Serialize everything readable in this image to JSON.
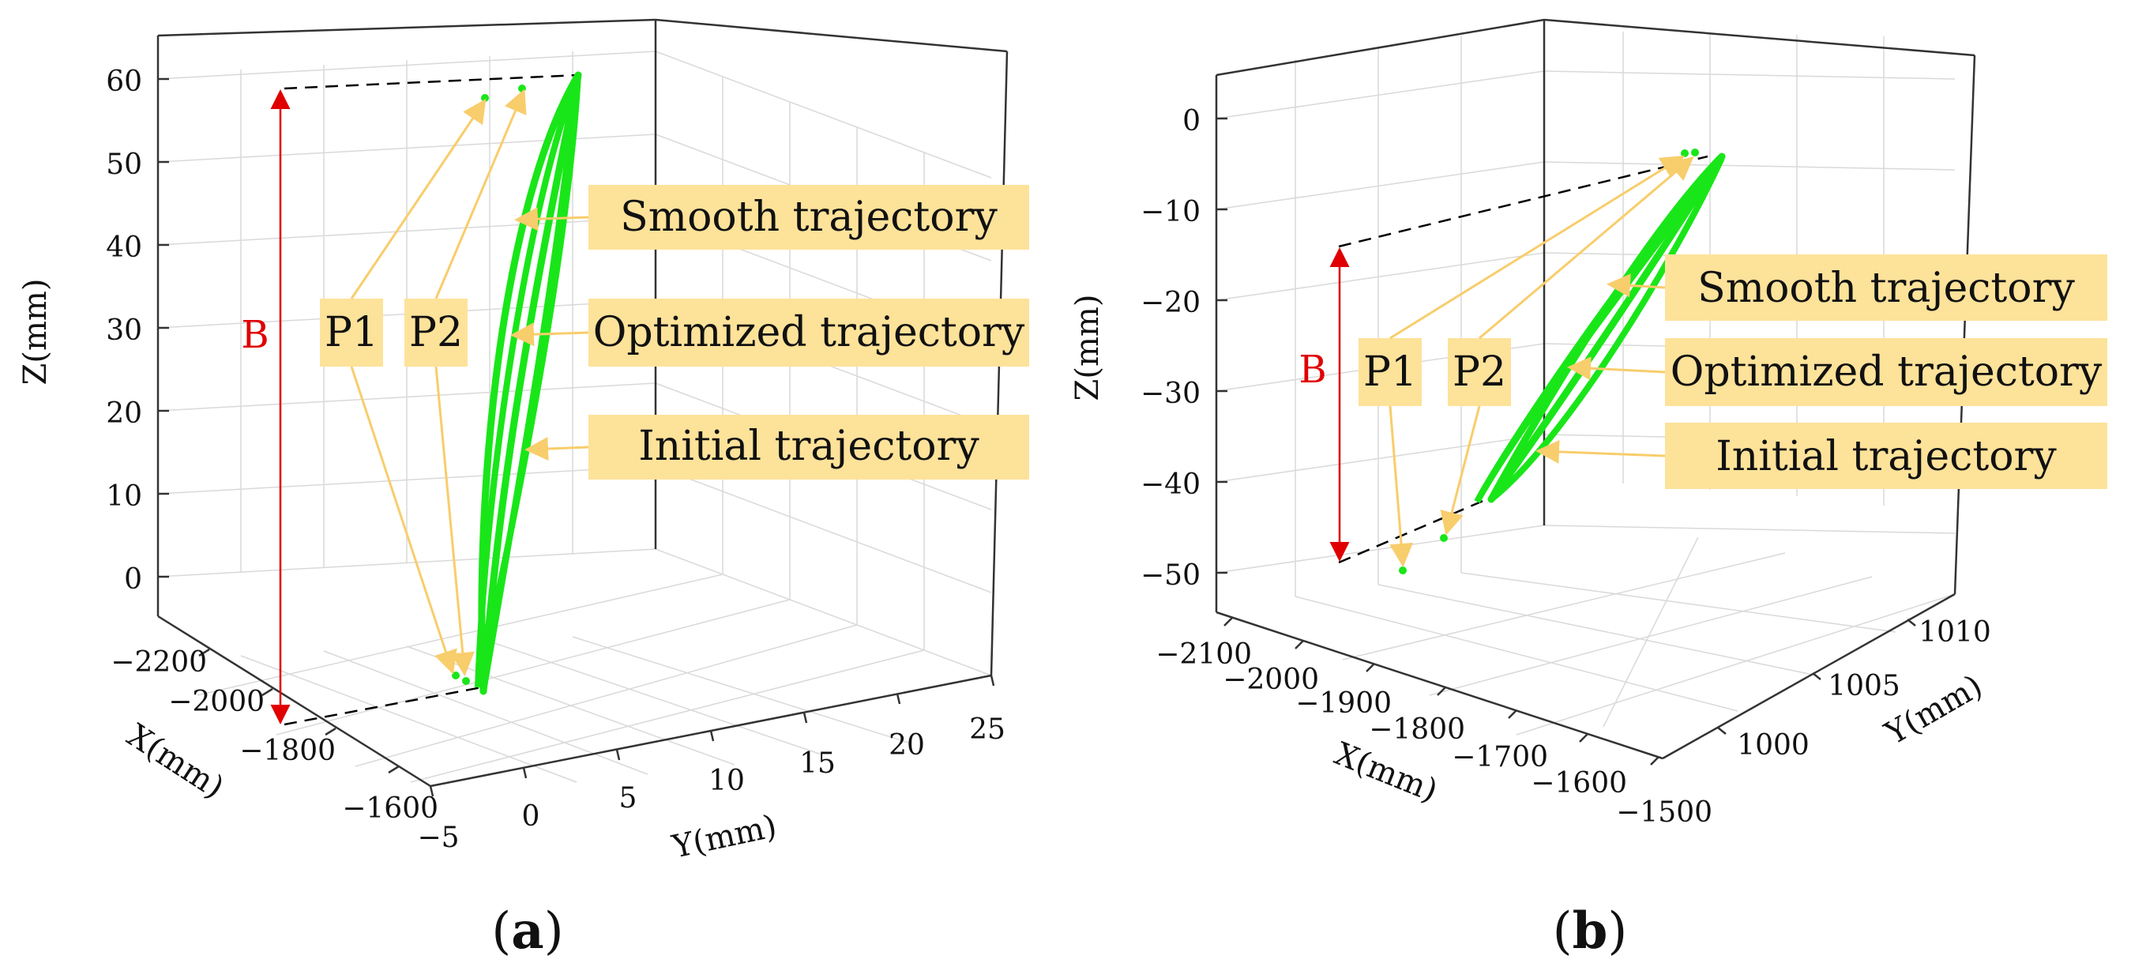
{
  "chart_data": [
    {
      "type": "line3d",
      "caption": "a",
      "xlabel": "X(mm)",
      "ylabel": "Y(mm)",
      "zlabel": "Z(mm)",
      "x_ticks": [
        "−2200",
        "−2000",
        "−1800",
        "−1600"
      ],
      "y_ticks": [
        "−5",
        "0",
        "5",
        "10",
        "15",
        "20",
        "25"
      ],
      "z_ticks": [
        "0",
        "10",
        "20",
        "30",
        "40",
        "50",
        "60"
      ],
      "xlim": [
        -2250,
        -1550
      ],
      "ylim": [
        -5,
        25
      ],
      "zlim": [
        -5,
        65
      ],
      "series": [
        {
          "name": "Smooth trajectory",
          "color": "#19e619"
        },
        {
          "name": "Optimized trajectory",
          "color": "#19e619"
        },
        {
          "name": "Initial trajectory",
          "color": "#19e619"
        }
      ],
      "points": [
        {
          "name": "P1",
          "color": "#19e619"
        },
        {
          "name": "P2",
          "color": "#19e619"
        }
      ],
      "annotation_distance": "B",
      "annotation_fill": "#fde29a",
      "arrow_color": "#f8cd6c",
      "distance_color": "#e00000"
    },
    {
      "type": "line3d",
      "caption": "b",
      "xlabel": "X(mm)",
      "ylabel": "Y(mm)",
      "zlabel": "Z(mm)",
      "x_ticks": [
        "−2100",
        "−2000",
        "−1900",
        "−1800",
        "−1700",
        "−1600",
        "−1500"
      ],
      "y_ticks": [
        "1000",
        "1005",
        "1010"
      ],
      "z_ticks": [
        "0",
        "−10",
        "−20",
        "−30",
        "−40",
        "−50"
      ],
      "xlim": [
        -2150,
        -1500
      ],
      "ylim": [
        995,
        1012
      ],
      "zlim": [
        -55,
        5
      ],
      "series": [
        {
          "name": "Smooth trajectory",
          "color": "#19e619"
        },
        {
          "name": "Optimized trajectory",
          "color": "#19e619"
        },
        {
          "name": "Initial trajectory",
          "color": "#19e619"
        }
      ],
      "points": [
        {
          "name": "P1",
          "color": "#19e619"
        },
        {
          "name": "P2",
          "color": "#19e619"
        }
      ],
      "annotation_distance": "B",
      "annotation_fill": "#fde29a",
      "arrow_color": "#f8cd6c",
      "distance_color": "#e00000"
    }
  ]
}
